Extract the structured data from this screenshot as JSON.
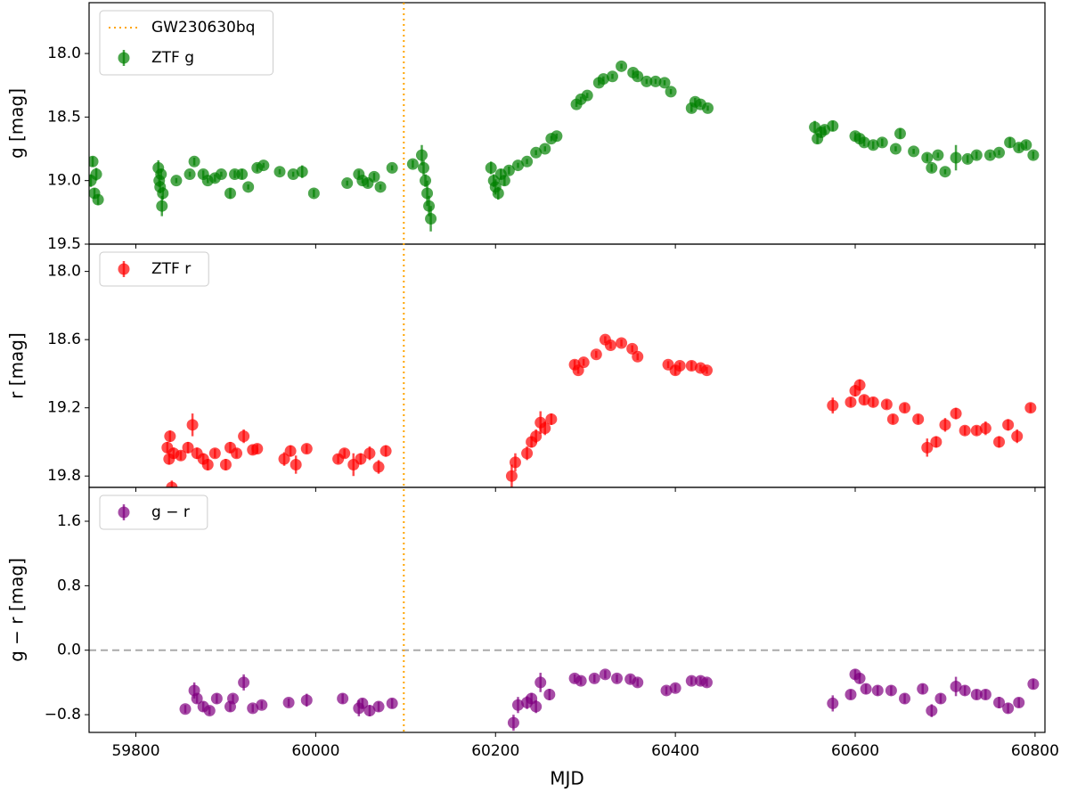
{
  "chart_data": [
    {
      "type": "scatter",
      "ylabel": "g [mag]",
      "ylim": [
        17.6,
        19.5
      ],
      "y_inverted": true,
      "yticks": [
        {
          "value": 18.0,
          "label": "18.0"
        },
        18.5,
        {
          "value": 19.0,
          "label": "19.0"
        },
        19.5
      ],
      "legend": "upper left",
      "vline": {
        "name": "GW230630bq",
        "x": 60098,
        "color": "orange",
        "style": "dotted"
      },
      "series": [
        {
          "name": "ZTF g",
          "color": "green",
          "x": [
            59750,
            59752,
            59754,
            59756,
            59758,
            59825,
            59826,
            59827,
            59828,
            59829,
            59830,
            59845,
            59860,
            59865,
            59875,
            59880,
            59888,
            59895,
            59905,
            59910,
            59918,
            59925,
            59935,
            59942,
            59960,
            59975,
            59985,
            59998,
            60035,
            60048,
            60052,
            60058,
            60065,
            60072,
            60085,
            60108,
            60118,
            60120,
            60122,
            60124,
            60126,
            60128,
            60195,
            60198,
            60200,
            60203,
            60206,
            60210,
            60215,
            60225,
            60235,
            60245,
            60255,
            60262,
            60268,
            60290,
            60295,
            60302,
            60315,
            60320,
            60330,
            60340,
            60353,
            60358,
            60368,
            60378,
            60388,
            60395,
            60418,
            60422,
            60428,
            60436,
            60555,
            60558,
            60562,
            60566,
            60575,
            60600,
            60605,
            60610,
            60620,
            60630,
            60645,
            60650,
            60665,
            60680,
            60685,
            60692,
            60700,
            60712,
            60725,
            60735,
            60750,
            60760,
            60772,
            60782,
            60790,
            60798
          ],
          "values": [
            19.0,
            18.85,
            19.1,
            18.95,
            19.15,
            18.9,
            19.0,
            19.05,
            18.95,
            19.2,
            19.1,
            19.0,
            18.95,
            18.85,
            18.95,
            19.0,
            18.98,
            18.95,
            19.1,
            18.95,
            18.95,
            19.05,
            18.9,
            18.88,
            18.93,
            18.95,
            18.93,
            19.1,
            19.02,
            18.95,
            19.0,
            19.02,
            18.97,
            19.05,
            18.9,
            18.87,
            18.8,
            18.9,
            19.0,
            19.1,
            19.2,
            19.3,
            18.9,
            19.0,
            19.05,
            19.1,
            18.95,
            19.0,
            18.92,
            18.88,
            18.85,
            18.78,
            18.75,
            18.67,
            18.65,
            18.4,
            18.36,
            18.33,
            18.23,
            18.2,
            18.18,
            18.1,
            18.15,
            18.18,
            18.22,
            18.22,
            18.23,
            18.3,
            18.43,
            18.38,
            18.4,
            18.43,
            18.58,
            18.67,
            18.62,
            18.6,
            18.57,
            18.65,
            18.67,
            18.7,
            18.72,
            18.7,
            18.75,
            18.63,
            18.77,
            18.82,
            18.9,
            18.8,
            18.93,
            18.82,
            18.83,
            18.8,
            18.8,
            18.78,
            18.7,
            18.74,
            18.72,
            18.8
          ],
          "errors": [
            0.05,
            0.04,
            0.04,
            0.05,
            0.04,
            0.06,
            0.05,
            0.05,
            0.04,
            0.08,
            0.05,
            0.02,
            0.02,
            0.03,
            0.03,
            0.02,
            0.03,
            0.02,
            0.04,
            0.03,
            0.04,
            0.02,
            0.03,
            0.02,
            0.02,
            0.02,
            0.05,
            0.03,
            0.02,
            0.03,
            0.02,
            0.03,
            0.03,
            0.02,
            0.02,
            0.03,
            0.08,
            0.06,
            0.05,
            0.1,
            0.08,
            0.1,
            0.05,
            0.05,
            0.06,
            0.05,
            0.04,
            0.04,
            0.03,
            0.02,
            0.02,
            0.02,
            0.02,
            0.02,
            0.02,
            0.02,
            0.02,
            0.02,
            0.02,
            0.02,
            0.02,
            0.02,
            0.02,
            0.02,
            0.02,
            0.02,
            0.02,
            0.02,
            0.03,
            0.03,
            0.02,
            0.02,
            0.05,
            0.04,
            0.04,
            0.03,
            0.04,
            0.03,
            0.03,
            0.03,
            0.03,
            0.03,
            0.02,
            0.04,
            0.02,
            0.03,
            0.03,
            0.02,
            0.02,
            0.1,
            0.03,
            0.03,
            0.02,
            0.02,
            0.04,
            0.03,
            0.03,
            0.03
          ]
        }
      ]
    },
    {
      "type": "scatter",
      "ylabel": "r [mag]",
      "ylim": [
        17.76,
        19.9
      ],
      "y_inverted": true,
      "yticks": [
        {
          "value": 18.0,
          "label": "18.0"
        },
        18.6,
        19.2,
        19.8
      ],
      "legend": "upper left",
      "series": [
        {
          "name": "ZTF r",
          "color": "red",
          "x": [
            59835,
            59837,
            59838,
            59840,
            59842,
            59850,
            59858,
            59863,
            59868,
            59875,
            59880,
            59888,
            59900,
            59905,
            59912,
            59920,
            59930,
            59935,
            59965,
            59972,
            59978,
            59990,
            60025,
            60032,
            60042,
            60050,
            60060,
            60070,
            60078,
            60218,
            60222,
            60235,
            60240,
            60245,
            60250,
            60255,
            60262,
            60288,
            60292,
            60298,
            60312,
            60322,
            60328,
            60340,
            60352,
            60358,
            60392,
            60400,
            60405,
            60418,
            60428,
            60435,
            60575,
            60595,
            60600,
            60605,
            60610,
            60620,
            60635,
            60642,
            60655,
            60670,
            60680,
            60690,
            60700,
            60712,
            60722,
            60735,
            60745,
            60760,
            60770,
            60780,
            60795
          ],
          "values": [
            19.55,
            19.65,
            19.45,
            19.9,
            19.6,
            19.62,
            19.55,
            19.35,
            19.6,
            19.65,
            19.7,
            19.6,
            19.7,
            19.55,
            19.6,
            19.45,
            19.57,
            19.56,
            19.65,
            19.58,
            19.7,
            19.56,
            19.65,
            19.6,
            19.7,
            19.65,
            19.6,
            19.72,
            19.58,
            19.8,
            19.68,
            19.6,
            19.5,
            19.45,
            19.33,
            19.38,
            19.3,
            18.82,
            18.87,
            18.8,
            18.73,
            18.6,
            18.65,
            18.63,
            18.68,
            18.75,
            18.82,
            18.87,
            18.83,
            18.83,
            18.85,
            18.87,
            19.18,
            19.15,
            19.05,
            19.0,
            19.13,
            19.15,
            19.17,
            19.3,
            19.2,
            19.3,
            19.55,
            19.5,
            19.35,
            19.25,
            19.4,
            19.4,
            19.38,
            19.5,
            19.35,
            19.45,
            19.2
          ],
          "errors": [
            0.05,
            0.05,
            0.05,
            0.06,
            0.05,
            0.04,
            0.05,
            0.1,
            0.05,
            0.05,
            0.05,
            0.04,
            0.05,
            0.05,
            0.04,
            0.06,
            0.04,
            0.04,
            0.06,
            0.05,
            0.08,
            0.04,
            0.04,
            0.04,
            0.1,
            0.05,
            0.06,
            0.06,
            0.05,
            0.1,
            0.08,
            0.06,
            0.05,
            0.06,
            0.1,
            0.06,
            0.05,
            0.04,
            0.03,
            0.03,
            0.03,
            0.03,
            0.03,
            0.03,
            0.03,
            0.03,
            0.03,
            0.04,
            0.03,
            0.04,
            0.03,
            0.03,
            0.07,
            0.04,
            0.05,
            0.05,
            0.04,
            0.04,
            0.04,
            0.04,
            0.04,
            0.04,
            0.08,
            0.05,
            0.06,
            0.05,
            0.04,
            0.04,
            0.06,
            0.05,
            0.05,
            0.06,
            0.04
          ]
        }
      ]
    },
    {
      "type": "scatter",
      "ylabel": "g − r [mag]",
      "xlabel": "MJD",
      "ylim": [
        -1.02,
        2.02
      ],
      "y_inverted": false,
      "yticks": [
        1.6,
        0.8,
        {
          "value": 0.0,
          "label": "0.0"
        },
        {
          "value": -0.8,
          "label": "−0.8"
        }
      ],
      "xlim": [
        59748,
        60811
      ],
      "xticks": [
        59800,
        60000,
        60200,
        60400,
        60600,
        60800
      ],
      "legend": "upper left",
      "hline": {
        "y": 0,
        "color": "#aaaaaa",
        "style": "dashed"
      },
      "series": [
        {
          "name": "g − r",
          "color": "purple",
          "x": [
            59855,
            59865,
            59868,
            59875,
            59882,
            59890,
            59905,
            59908,
            59920,
            59930,
            59940,
            59970,
            59990,
            60030,
            60048,
            60052,
            60060,
            60070,
            60085,
            60220,
            60225,
            60235,
            60240,
            60245,
            60250,
            60260,
            60288,
            60295,
            60310,
            60322,
            60335,
            60350,
            60358,
            60390,
            60400,
            60418,
            60428,
            60435,
            60575,
            60595,
            60600,
            60605,
            60612,
            60625,
            60640,
            60655,
            60675,
            60685,
            60695,
            60712,
            60722,
            60735,
            60745,
            60760,
            60770,
            60782,
            60798
          ],
          "values": [
            -0.73,
            -0.5,
            -0.6,
            -0.7,
            -0.75,
            -0.6,
            -0.7,
            -0.6,
            -0.4,
            -0.72,
            -0.68,
            -0.65,
            -0.62,
            -0.6,
            -0.72,
            -0.66,
            -0.75,
            -0.7,
            -0.66,
            -0.9,
            -0.68,
            -0.65,
            -0.6,
            -0.7,
            -0.4,
            -0.55,
            -0.35,
            -0.38,
            -0.35,
            -0.3,
            -0.35,
            -0.36,
            -0.4,
            -0.5,
            -0.47,
            -0.38,
            -0.38,
            -0.4,
            -0.66,
            -0.55,
            -0.3,
            -0.35,
            -0.48,
            -0.5,
            -0.5,
            -0.6,
            -0.48,
            -0.75,
            -0.6,
            -0.45,
            -0.5,
            -0.55,
            -0.55,
            -0.65,
            -0.72,
            -0.65,
            -0.42
          ],
          "errors": [
            0.05,
            0.1,
            0.06,
            0.06,
            0.05,
            0.06,
            0.06,
            0.05,
            0.1,
            0.05,
            0.05,
            0.05,
            0.08,
            0.06,
            0.1,
            0.06,
            0.07,
            0.06,
            0.06,
            0.1,
            0.1,
            0.08,
            0.07,
            0.08,
            0.12,
            0.07,
            0.05,
            0.05,
            0.05,
            0.05,
            0.05,
            0.05,
            0.05,
            0.05,
            0.05,
            0.05,
            0.05,
            0.05,
            0.1,
            0.06,
            0.06,
            0.06,
            0.06,
            0.06,
            0.06,
            0.06,
            0.06,
            0.08,
            0.06,
            0.12,
            0.06,
            0.06,
            0.06,
            0.07,
            0.06,
            0.06,
            0.06
          ]
        }
      ]
    }
  ]
}
